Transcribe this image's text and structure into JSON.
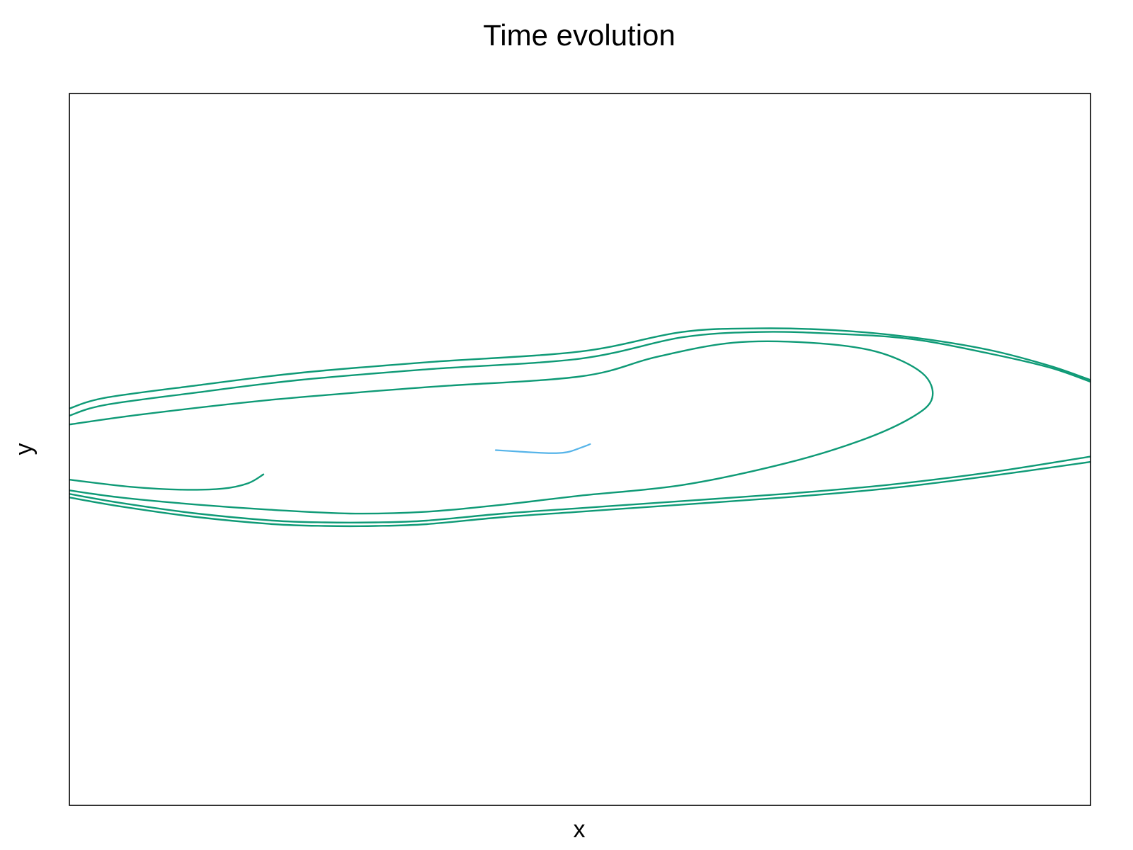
{
  "chart_data": {
    "type": "line",
    "title": "Time evolution",
    "xlabel": "x",
    "ylabel": "y",
    "xlim": [
      -1.0,
      1.0
    ],
    "ylim": [
      -1.0,
      1.0
    ],
    "grid": false,
    "ticks": false,
    "series": [
      {
        "color": "#0e9a76",
        "x": [
          -1.0,
          -0.93,
          -0.75,
          -0.55,
          -0.3,
          0.0,
          0.2,
          0.35,
          0.5,
          0.65,
          0.8,
          0.92,
          1.0
        ],
        "y": [
          0.115,
          0.145,
          0.18,
          0.215,
          0.245,
          0.275,
          0.33,
          0.34,
          0.335,
          0.315,
          0.28,
          0.235,
          0.195
        ]
      },
      {
        "color": "#0e9a76",
        "x": [
          -1.0,
          -0.93,
          -0.75,
          -0.55,
          -0.3,
          0.0,
          0.2,
          0.35,
          0.5,
          0.65,
          0.8,
          0.92,
          1.0
        ],
        "y": [
          0.095,
          0.125,
          0.16,
          0.195,
          0.225,
          0.255,
          0.315,
          0.33,
          0.325,
          0.31,
          0.27,
          0.23,
          0.19
        ]
      },
      {
        "color": "#0e9a76",
        "x": [
          -1.0,
          -0.85,
          -0.6,
          -0.3,
          0.0,
          0.15,
          0.3,
          0.45,
          0.58,
          0.67,
          0.69,
          0.65,
          0.55,
          0.4,
          0.2,
          0.0,
          -0.15,
          -0.3,
          -0.45,
          -0.6,
          -0.75,
          -0.9,
          -1.0
        ],
        "y": [
          0.07,
          0.1,
          0.14,
          0.175,
          0.205,
          0.26,
          0.3,
          0.3,
          0.275,
          0.215,
          0.145,
          0.09,
          0.025,
          -0.04,
          -0.1,
          -0.13,
          -0.155,
          -0.175,
          -0.18,
          -0.17,
          -0.155,
          -0.135,
          -0.115
        ]
      },
      {
        "color": "#0e9a76",
        "x": [
          -1.0,
          -0.88,
          -0.78,
          -0.7,
          -0.65,
          -0.62
        ],
        "y": [
          -0.085,
          -0.105,
          -0.113,
          -0.11,
          -0.095,
          -0.07
        ]
      },
      {
        "color": "#0e9a76",
        "x": [
          -1.0,
          -0.9,
          -0.75,
          -0.6,
          -0.5,
          -0.4,
          -0.3,
          -0.15,
          0.0,
          0.2,
          0.4,
          0.6,
          0.8,
          1.0
        ],
        "y": [
          -0.125,
          -0.15,
          -0.18,
          -0.2,
          -0.205,
          -0.205,
          -0.2,
          -0.18,
          -0.165,
          -0.145,
          -0.125,
          -0.1,
          -0.065,
          -0.02
        ]
      },
      {
        "color": "#0e9a76",
        "x": [
          -1.0,
          -0.9,
          -0.75,
          -0.6,
          -0.5,
          -0.4,
          -0.3,
          -0.15,
          0.0,
          0.2,
          0.4,
          0.6,
          0.8,
          1.0
        ],
        "y": [
          -0.135,
          -0.16,
          -0.19,
          -0.21,
          -0.215,
          -0.215,
          -0.21,
          -0.19,
          -0.175,
          -0.155,
          -0.135,
          -0.11,
          -0.075,
          -0.035
        ]
      },
      {
        "color": "#56b4e9",
        "x": [
          -0.165,
          -0.12,
          -0.07,
          -0.04,
          -0.02,
          0.0,
          0.015,
          0.02
        ],
        "y": [
          -0.002,
          -0.006,
          -0.01,
          -0.01,
          -0.006,
          0.004,
          0.012,
          0.015
        ]
      }
    ]
  }
}
